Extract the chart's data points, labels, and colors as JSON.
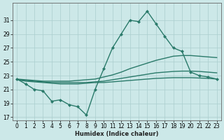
{
  "xlabel": "Humidex (Indice chaleur)",
  "bg_color": "#cce8e8",
  "line_color": "#2a7a6a",
  "grid_color": "#aacece",
  "x": [
    0,
    1,
    2,
    3,
    4,
    5,
    6,
    7,
    8,
    9,
    10,
    11,
    12,
    13,
    14,
    15,
    16,
    17,
    18,
    19,
    20,
    21,
    22,
    23
  ],
  "main_line": [
    22.5,
    21.8,
    21.0,
    20.8,
    19.3,
    19.5,
    18.8,
    18.5,
    17.3,
    21.0,
    24.0,
    27.0,
    29.0,
    31.0,
    30.8,
    32.3,
    30.5,
    28.7,
    27.0,
    26.5,
    23.5,
    23.0,
    22.8,
    22.5
  ],
  "trend_top": [
    22.5,
    22.4,
    22.3,
    22.2,
    22.2,
    22.2,
    22.2,
    22.3,
    22.4,
    22.5,
    22.8,
    23.1,
    23.5,
    24.0,
    24.4,
    24.8,
    25.2,
    25.5,
    25.8,
    25.9,
    25.9,
    25.8,
    25.7,
    25.6
  ],
  "trend_mid": [
    22.4,
    22.3,
    22.2,
    22.1,
    22.0,
    22.0,
    22.0,
    22.0,
    22.0,
    22.1,
    22.2,
    22.4,
    22.6,
    22.8,
    23.0,
    23.2,
    23.4,
    23.5,
    23.6,
    23.65,
    23.65,
    23.6,
    23.5,
    23.4
  ],
  "trend_bot": [
    22.4,
    22.2,
    22.1,
    22.0,
    21.9,
    21.8,
    21.8,
    21.8,
    21.9,
    22.0,
    22.0,
    22.1,
    22.2,
    22.3,
    22.4,
    22.5,
    22.6,
    22.65,
    22.7,
    22.7,
    22.7,
    22.65,
    22.6,
    22.5
  ],
  "ylim": [
    16.5,
    33.5
  ],
  "yticks": [
    17,
    19,
    21,
    23,
    25,
    27,
    29,
    31
  ],
  "xlim": [
    -0.5,
    23.5
  ],
  "xticks": [
    0,
    1,
    2,
    3,
    4,
    5,
    6,
    7,
    8,
    9,
    10,
    11,
    12,
    13,
    14,
    15,
    16,
    17,
    18,
    19,
    20,
    21,
    22,
    23
  ],
  "lw": 1.0,
  "marker_size": 2.5,
  "tick_fontsize": 5.5,
  "xlabel_fontsize": 6.0
}
